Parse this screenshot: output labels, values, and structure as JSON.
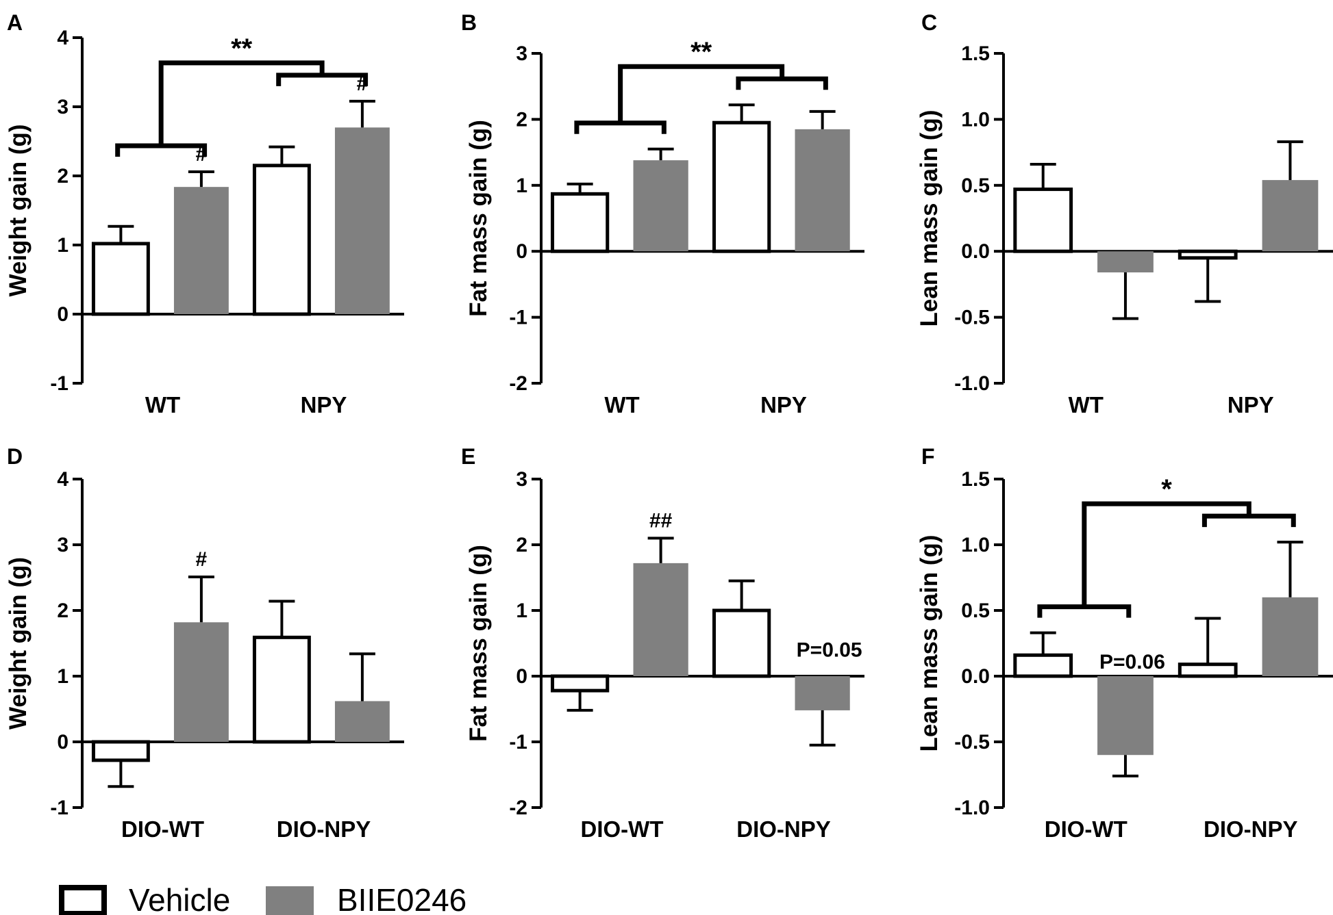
{
  "legend": {
    "vehicle_label": "Vehicle",
    "biie_label": "BIIE0246",
    "colors": {
      "vehicle": "#ffffff",
      "biie": "#808080",
      "stroke": "#000000"
    }
  },
  "chart_data": [
    {
      "panel": "A",
      "type": "bar",
      "ylabel": "Weight gain (g)",
      "ylim": [
        -1,
        4
      ],
      "yticks": [
        "-1",
        "0",
        "1",
        "2",
        "3",
        "4"
      ],
      "ytick_values": [
        -1,
        0,
        1,
        2,
        3,
        4
      ],
      "categories": [
        "WT",
        "NPY"
      ],
      "series": [
        {
          "name": "Vehicle",
          "values": [
            1.02,
            2.15
          ],
          "errors": [
            0.25,
            0.27
          ]
        },
        {
          "name": "BIIE0246",
          "values": [
            1.84,
            2.7
          ],
          "errors": [
            0.22,
            0.38
          ]
        }
      ],
      "bar_marks": [
        "#",
        "#"
      ],
      "sig": "**",
      "text_annotations": []
    },
    {
      "panel": "B",
      "type": "bar",
      "ylabel": "Fat mass gain (g)",
      "ylim": [
        -2,
        3
      ],
      "yticks": [
        "-2",
        "-1",
        "0",
        "1",
        "2",
        "3"
      ],
      "ytick_values": [
        -2,
        -1,
        0,
        1,
        2,
        3
      ],
      "categories": [
        "WT",
        "NPY"
      ],
      "series": [
        {
          "name": "Vehicle",
          "values": [
            0.87,
            1.95
          ],
          "errors": [
            0.15,
            0.27
          ]
        },
        {
          "name": "BIIE0246",
          "values": [
            1.38,
            1.85
          ],
          "errors": [
            0.17,
            0.27
          ]
        }
      ],
      "bar_marks": [
        "",
        ""
      ],
      "sig": "**",
      "text_annotations": []
    },
    {
      "panel": "C",
      "type": "bar",
      "ylabel": "Lean mass gain (g)",
      "ylim": [
        -1.0,
        1.5
      ],
      "yticks": [
        "-1.0",
        "-0.5",
        "0.0",
        "0.5",
        "1.0",
        "1.5"
      ],
      "ytick_values": [
        -1.0,
        -0.5,
        0.0,
        0.5,
        1.0,
        1.5
      ],
      "categories": [
        "WT",
        "NPY"
      ],
      "series": [
        {
          "name": "Vehicle",
          "values": [
            0.47,
            -0.05
          ],
          "errors": [
            0.19,
            0.33
          ]
        },
        {
          "name": "BIIE0246",
          "values": [
            -0.16,
            0.54
          ],
          "errors": [
            0.35,
            0.29
          ]
        }
      ],
      "bar_marks": [
        "",
        ""
      ],
      "sig": "",
      "text_annotations": []
    },
    {
      "panel": "D",
      "type": "bar",
      "ylabel": "Weight gain (g)",
      "ylim": [
        -1,
        4
      ],
      "yticks": [
        "-1",
        "0",
        "1",
        "2",
        "3",
        "4"
      ],
      "ytick_values": [
        -1,
        0,
        1,
        2,
        3,
        4
      ],
      "categories": [
        "DIO-WT",
        "DIO-NPY"
      ],
      "series": [
        {
          "name": "Vehicle",
          "values": [
            -0.28,
            1.59
          ],
          "errors": [
            0.4,
            0.55
          ]
        },
        {
          "name": "BIIE0246",
          "values": [
            1.82,
            0.62
          ],
          "errors": [
            0.69,
            0.72
          ]
        }
      ],
      "bar_marks": [
        "#",
        ""
      ],
      "sig": "",
      "text_annotations": []
    },
    {
      "panel": "E",
      "type": "bar",
      "ylabel": "Fat mass gain (g)",
      "ylim": [
        -2,
        3
      ],
      "yticks": [
        "-2",
        "-1",
        "0",
        "1",
        "2",
        "3"
      ],
      "ytick_values": [
        -2,
        -1,
        0,
        1,
        2,
        3
      ],
      "categories": [
        "DIO-WT",
        "DIO-NPY"
      ],
      "series": [
        {
          "name": "Vehicle",
          "values": [
            -0.22,
            1.0
          ],
          "errors": [
            0.3,
            0.45
          ]
        },
        {
          "name": "BIIE0246",
          "values": [
            1.72,
            -0.52
          ],
          "errors": [
            0.38,
            0.53
          ]
        }
      ],
      "bar_marks": [
        "##",
        ""
      ],
      "sig": "",
      "text_annotations": [
        {
          "text": "P=0.05",
          "group": 1,
          "value": 0.42
        }
      ]
    },
    {
      "panel": "F",
      "type": "bar",
      "ylabel": "Lean mass gain (g)",
      "ylim": [
        -1.0,
        1.5
      ],
      "yticks": [
        "-1.0",
        "-0.5",
        "0.0",
        "0.5",
        "1.0",
        "1.5"
      ],
      "ytick_values": [
        -1.0,
        -0.5,
        0.0,
        0.5,
        1.0,
        1.5
      ],
      "categories": [
        "DIO-WT",
        "DIO-NPY"
      ],
      "series": [
        {
          "name": "Vehicle",
          "values": [
            0.16,
            0.09
          ],
          "errors": [
            0.17,
            0.35
          ]
        },
        {
          "name": "BIIE0246",
          "values": [
            -0.6,
            0.6
          ],
          "errors": [
            0.16,
            0.42
          ]
        }
      ],
      "bar_marks": [
        "",
        ""
      ],
      "sig": "*",
      "text_annotations": [
        {
          "text": "P=0.06",
          "group": 0,
          "value": 0.12
        }
      ]
    }
  ]
}
